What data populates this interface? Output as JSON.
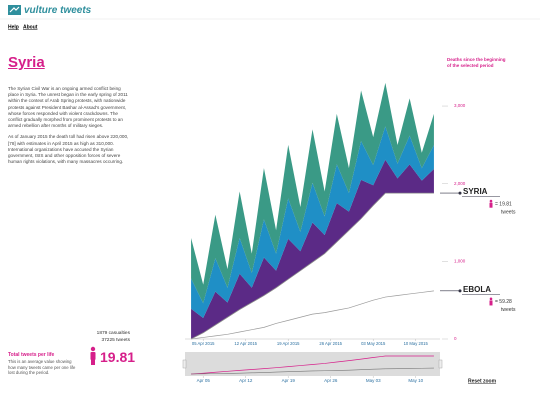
{
  "header": {
    "logo": "vulture tweets",
    "nav": [
      "Help",
      "About"
    ]
  },
  "country": {
    "title": "Syria",
    "paragraphs": [
      "The Syrian Civil War is an ongoing armed conflict being place in Syria. The unrest began in the early spring of 2011 within the context of Arab Spring protests, with nationwide protests against President Bashar al-Assad's government, whose forces responded with violent crackdowns. The conflict gradually morphed from prominent protests to an armed rebellion after months of military sieges.",
      "As of January 2015 the death toll had risen above 220,000,[78] with estimates in April 2015 as high as 310,000. International organizations have accused the Syrian government, ISIS and other opposition forces of severe human rights violations, with many massacres occurring."
    ],
    "casualties": "1879 casualties",
    "tweets": "37225 tweets",
    "ratio_title": "Total tweets per life",
    "ratio_desc": "This is an average value showing how many tweets came per one life lost during the period.",
    "ratio": "19.81"
  },
  "chart_data": {
    "type": "stacked-area",
    "y_axis_label": "Deaths since the beginning of the selected period",
    "x": [
      "2015-04-03",
      "2015-04-05",
      "2015-04-07",
      "2015-04-09",
      "2015-04-11",
      "2015-04-13",
      "2015-04-15",
      "2015-04-17",
      "2015-04-19",
      "2015-04-21",
      "2015-04-23",
      "2015-04-25",
      "2015-04-27",
      "2015-04-29",
      "2015-05-01",
      "2015-05-03",
      "2015-05-05",
      "2015-05-07",
      "2015-05-09",
      "2015-05-11",
      "2015-05-13"
    ],
    "xlim": [
      "2015-04-02",
      "2015-05-14"
    ],
    "xticks": [
      {
        "value": "2015-04-05",
        "label": "05 Apr 2015"
      },
      {
        "value": "2015-04-12",
        "label": "12 Apr 2015"
      },
      {
        "value": "2015-04-19",
        "label": "19 Apr 2015"
      },
      {
        "value": "2015-04-26",
        "label": "26 Apr 2015"
      },
      {
        "value": "2015-05-03",
        "label": "03 May 2015"
      },
      {
        "value": "2015-05-10",
        "label": "10 May 2015"
      }
    ],
    "ylim": [
      0,
      3400
    ],
    "yticks": [
      0,
      {
        "value": 1000,
        "label": "1,000"
      },
      {
        "value": 2000,
        "label": "2,000"
      },
      {
        "value": 3000,
        "label": "3,000"
      }
    ],
    "base": {
      "name": "SYRIA",
      "color": "#8a8a8a",
      "values": [
        0,
        80,
        180,
        280,
        380,
        470,
        560,
        660,
        770,
        880,
        990,
        1100,
        1250,
        1400,
        1550,
        1720,
        1879,
        1879,
        1879,
        1879,
        1879
      ]
    },
    "series": [
      {
        "color": "#5b2a86",
        "values": [
          390,
          190,
          430,
          190,
          460,
          190,
          490,
          220,
          520,
          250,
          510,
          240,
          500,
          240,
          500,
          260,
          430,
          190,
          370,
          160,
          310
        ]
      },
      {
        "color": "#1f8fc6",
        "values": [
          390,
          190,
          430,
          190,
          460,
          190,
          490,
          220,
          520,
          250,
          510,
          240,
          500,
          240,
          500,
          260,
          430,
          190,
          370,
          160,
          310
        ]
      },
      {
        "color": "#3a9a86",
        "values": [
          520,
          240,
          560,
          240,
          600,
          250,
          660,
          300,
          690,
          320,
          690,
          320,
          650,
          320,
          650,
          360,
          560,
          240,
          480,
          200,
          400
        ]
      }
    ],
    "lines": [
      {
        "name": "EBOLA",
        "color": "#9a9a9a",
        "values": [
          0,
          20,
          40,
          60,
          90,
          120,
          150,
          200,
          240,
          280,
          320,
          340,
          370,
          400,
          450,
          500,
          540,
          560,
          580,
          600,
          620
        ]
      }
    ],
    "labels": [
      {
        "ratio": "= 19.81",
        "unit": "tweets"
      },
      {
        "ratio": "= 59.28",
        "unit": "tweets"
      }
    ],
    "navigator": {
      "xticks": [
        {
          "value": "2015-04-05",
          "label": "Apr 05"
        },
        {
          "value": "2015-04-12",
          "label": "Apr 12"
        },
        {
          "value": "2015-04-19",
          "label": "Apr 19"
        },
        {
          "value": "2015-04-26",
          "label": "Apr 26"
        },
        {
          "value": "2015-05-03",
          "label": "May 03"
        },
        {
          "value": "2015-05-10",
          "label": "May 10"
        }
      ],
      "reset": "Reset zoom"
    }
  }
}
